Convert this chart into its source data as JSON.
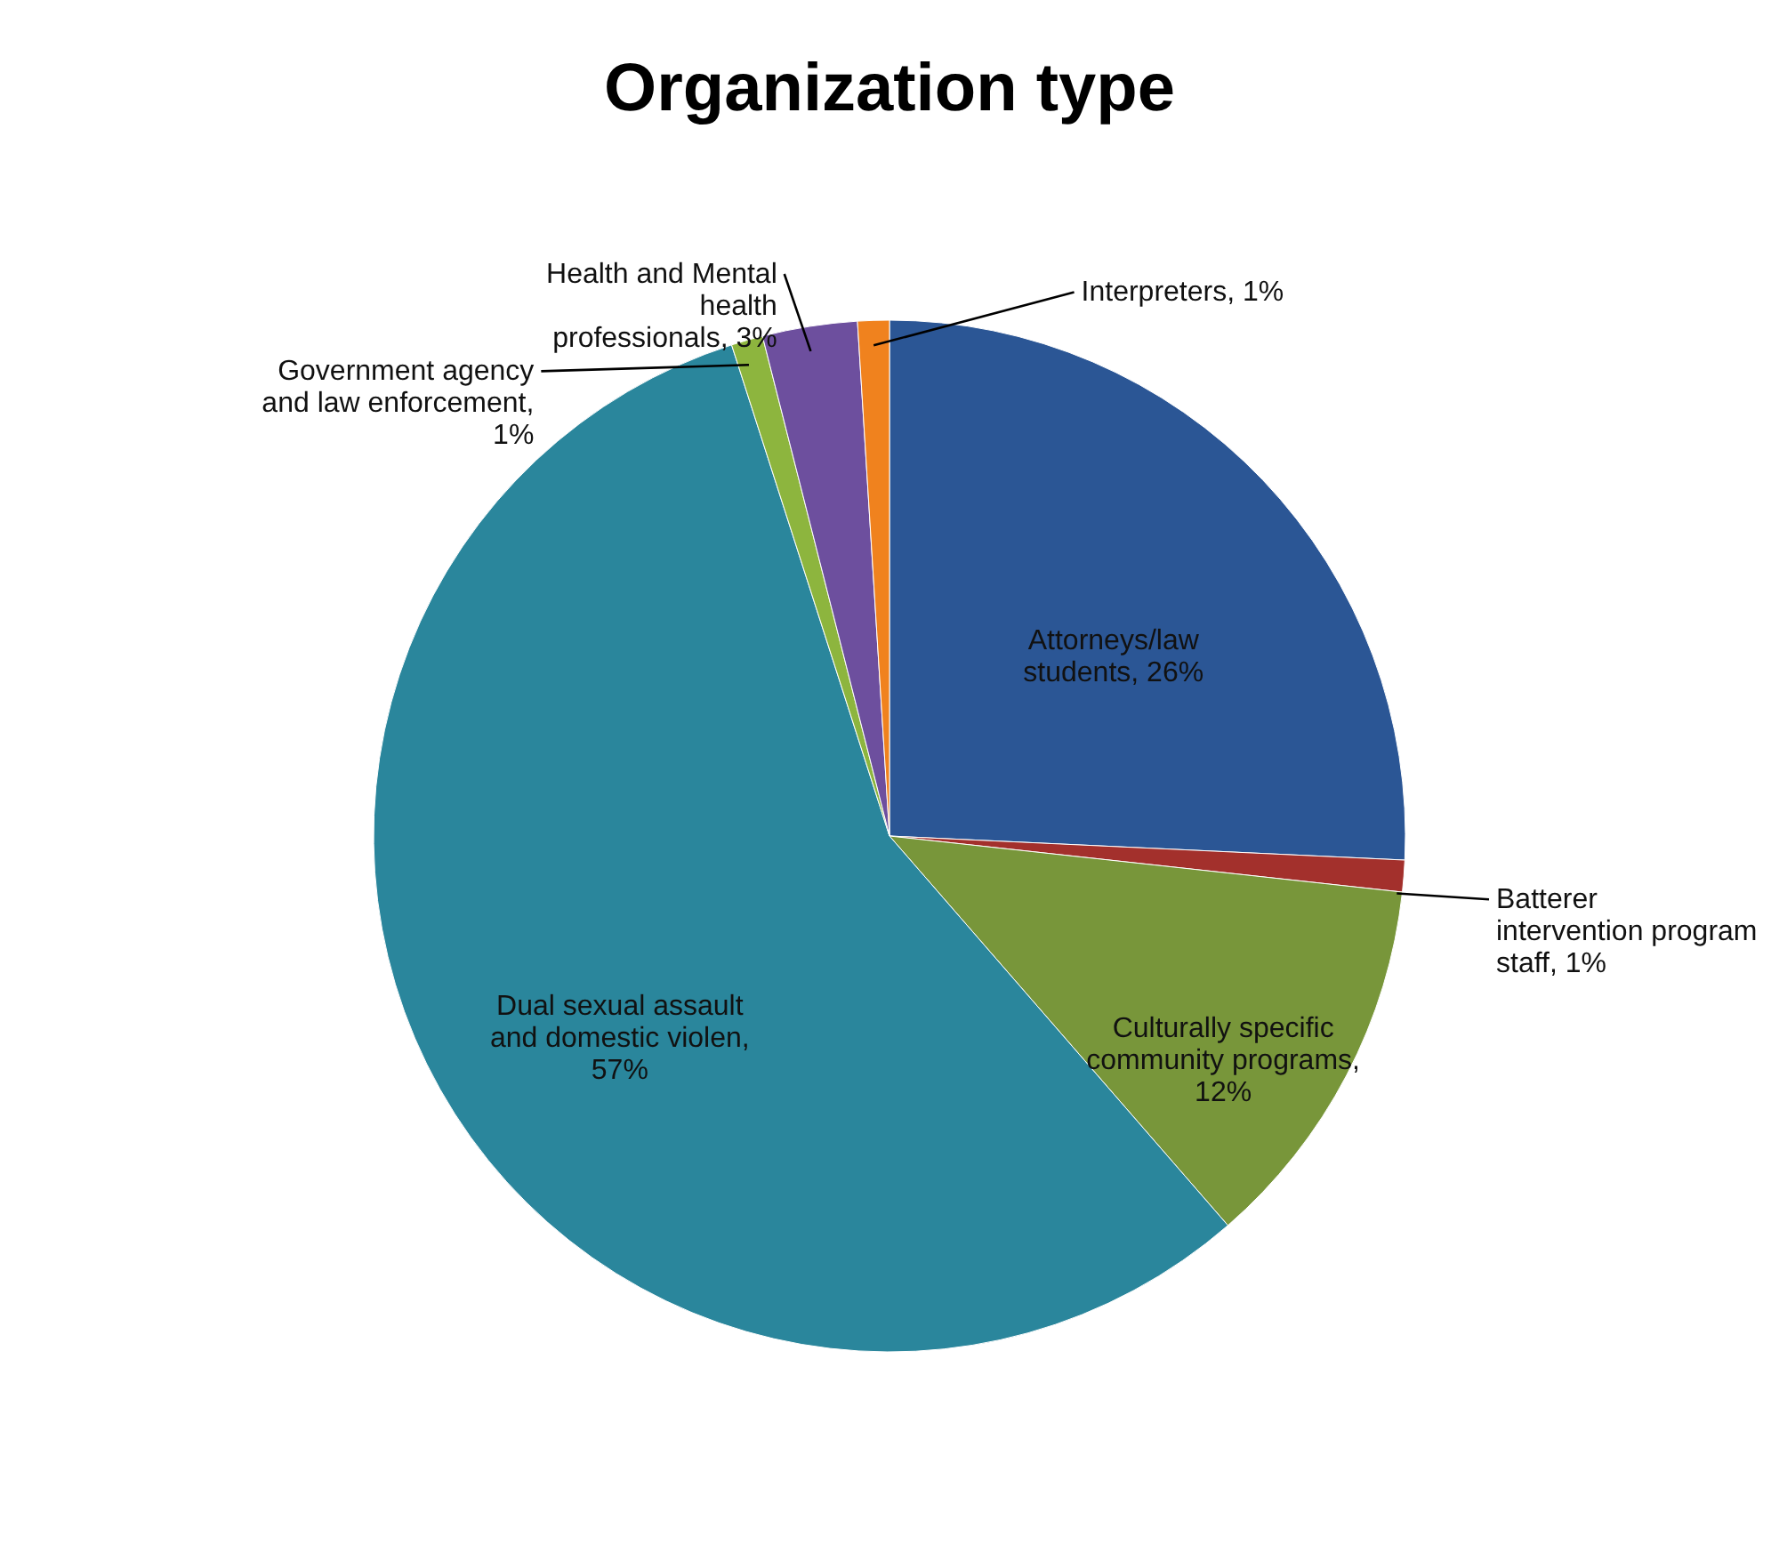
{
  "chart_data": {
    "type": "pie",
    "title": "Organization type",
    "categories": [
      "Attorneys/law students",
      "Batterer intervention program staff",
      "Culturally specific community programs",
      "Dual sexual assault and domestic violen",
      "Government agency and law enforcement",
      "Health and Mental health professionals",
      "Interpreters"
    ],
    "values": [
      26,
      1,
      12,
      57,
      1,
      3,
      1
    ],
    "colors": [
      "#2b5695",
      "#a3302c",
      "#78963a",
      "#2a869c",
      "#8db53e",
      "#6d4f9e",
      "#f0821e"
    ],
    "value_labels": [
      ", 26%",
      ", 1%",
      ", 12%",
      ", 57%",
      ", 1%",
      ", 3%",
      ", 1%"
    ],
    "legend": false
  }
}
